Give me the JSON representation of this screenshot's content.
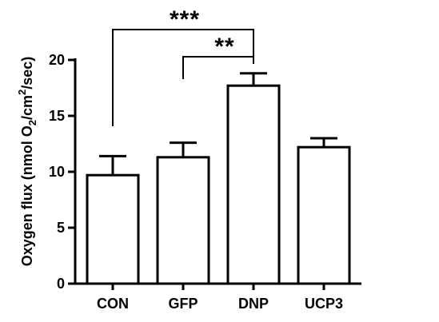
{
  "chart_data": {
    "type": "bar",
    "categories": [
      "CON",
      "GFP",
      "DNP",
      "UCP3"
    ],
    "values": [
      9.7,
      11.3,
      17.7,
      12.2
    ],
    "errors": [
      1.7,
      1.3,
      1.1,
      0.8
    ],
    "ylabel": {
      "prefix": "Oxygen flux (nmol O",
      "sub": "2",
      "mid": "/cm",
      "sup": "2",
      "suffix": "/sec)"
    },
    "ylim": [
      0,
      20
    ],
    "yticks": [
      0,
      5,
      10,
      15,
      20
    ],
    "grid": false,
    "significance": [
      {
        "from": "CON",
        "to": "DNP",
        "label": "***"
      },
      {
        "from": "GFP",
        "to": "DNP",
        "label": "**"
      }
    ]
  }
}
